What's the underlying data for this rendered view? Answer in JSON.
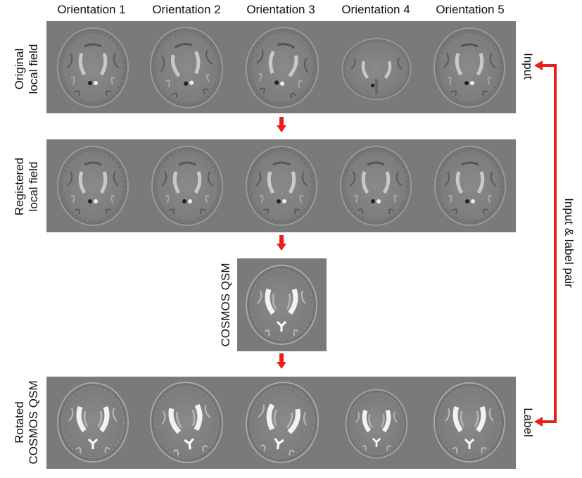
{
  "columns": [
    "Orientation 1",
    "Orientation 2",
    "Orientation 3",
    "Orientation 4",
    "Orientation 5"
  ],
  "rows": {
    "original": [
      "Original",
      "local field"
    ],
    "registered": [
      "Registered",
      "local field"
    ],
    "cosmos": [
      "COSMOS QSM"
    ],
    "rotated": [
      "Rotated",
      "COSMOS QSM"
    ]
  },
  "right_labels": {
    "input": "Input",
    "label": "Label",
    "pair": "Input & label pair"
  },
  "colors": {
    "arrow": "#e8201a",
    "panel_bg": "#7a7a7a"
  }
}
